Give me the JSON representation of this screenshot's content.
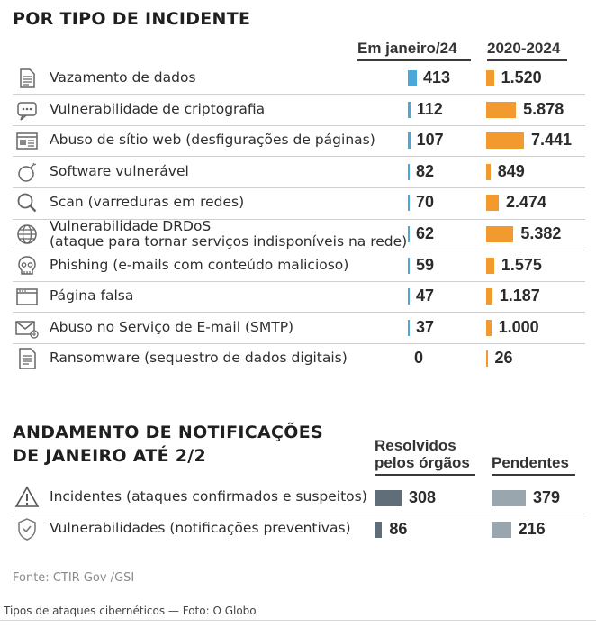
{
  "section1": {
    "title": "POR TIPO DE INCIDENTE",
    "col1": "Em janeiro/24",
    "col2": "2020-2024"
  },
  "section2": {
    "title_line1": "ANDAMENTO DE NOTIFICAÇÕES",
    "title_line2": "DE JANEIRO ATÉ 2/2",
    "col1_line1": "Resolvidos",
    "col1_line2": "pelos órgãos",
    "col2": "Pendentes"
  },
  "source": "Fonte: CTIR Gov /GSI",
  "caption": "Tipos de ataques cibernéticos — Foto: O Globo",
  "colors": {
    "jan": "#4aa9d9",
    "total": "#f29a2e",
    "resolved": "#5f6e78",
    "pending": "#9aa6ae"
  },
  "chart_data": [
    {
      "type": "bar",
      "title": "POR TIPO DE INCIDENTE",
      "categories": [
        "Vazamento de dados",
        "Vulnerabilidade de criptografia",
        "Abuso de sítio web (desfigurações de páginas)",
        "Software vulnerável",
        "Scan (varreduras em redes)",
        "Vulnerabilidade DRDoS (ataque para tornar serviços indisponíveis na rede)",
        "Phishing (e-mails com conteúdo malicioso)",
        "Página falsa",
        "Abuso no Serviço de E-mail (SMTP)",
        "Ransomware (sequestro de dados digitais)"
      ],
      "category_lines": [
        [
          "Vazamento de dados"
        ],
        [
          "Vulnerabilidade de criptografia"
        ],
        [
          "Abuso de sítio web (desfigurações de páginas)"
        ],
        [
          "Software vulnerável"
        ],
        [
          "Scan (varreduras em redes)"
        ],
        [
          "Vulnerabilidade DRDoS",
          "(ataque para tornar serviços indisponíveis na rede)"
        ],
        [
          "Phishing (e-mails com conteúdo malicioso)"
        ],
        [
          "Página falsa"
        ],
        [
          "Abuso no Serviço de E-mail (SMTP)"
        ],
        [
          "Ransomware (sequestro de dados digitais)"
        ]
      ],
      "icons": [
        "document-icon",
        "chat-bubble-icon",
        "web-page-icon",
        "bomb-icon",
        "magnifier-icon",
        "globe-icon",
        "skull-icon",
        "browser-window-icon",
        "envelope-icon",
        "ransom-document-icon"
      ],
      "series": [
        {
          "name": "Em janeiro/24",
          "values": [
            413,
            112,
            107,
            82,
            70,
            62,
            59,
            47,
            37,
            0
          ],
          "labels": [
            "413",
            "112",
            "107",
            "82",
            "70",
            "62",
            "59",
            "47",
            "37",
            "0"
          ]
        },
        {
          "name": "2020-2024",
          "values": [
            1520,
            5878,
            7441,
            849,
            2474,
            5382,
            1575,
            1187,
            1000,
            26
          ],
          "labels": [
            "1.520",
            "5.878",
            "7.441",
            "849",
            "2.474",
            "5.382",
            "1.575",
            "1.187",
            "1.000",
            "26"
          ]
        }
      ]
    },
    {
      "type": "bar",
      "title": "ANDAMENTO DE NOTIFICAÇÕES DE JANEIRO ATÉ 2/2",
      "categories": [
        "Incidentes (ataques confirmados e suspeitos)",
        "Vulnerabilidades (notificações preventivas)"
      ],
      "icons": [
        "warning-icon",
        "shield-icon"
      ],
      "series": [
        {
          "name": "Resolvidos pelos órgãos",
          "values": [
            308,
            86
          ],
          "labels": [
            "308",
            "86"
          ]
        },
        {
          "name": "Pendentes",
          "values": [
            379,
            216
          ],
          "labels": [
            "379",
            "216"
          ]
        }
      ]
    }
  ]
}
